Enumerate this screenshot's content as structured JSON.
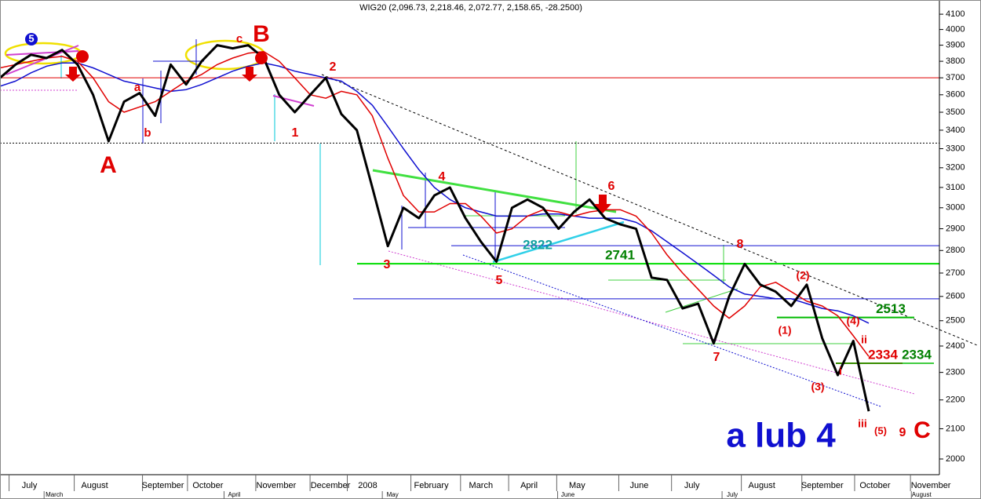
{
  "chart_data": {
    "type": "line",
    "title": "WIG20 (2,096.73, 2,218.46, 2,072.77, 2,158.65, -28.2500)",
    "log_scale": true,
    "xlim": [
      0,
      60.5
    ],
    "ylim": [
      1950,
      4195
    ],
    "yticks": [
      2000,
      2100,
      2200,
      2300,
      2400,
      2500,
      2600,
      2700,
      2800,
      2900,
      3000,
      3100,
      3200,
      3300,
      3400,
      3500,
      3600,
      3700,
      3800,
      3900,
      4000,
      4100
    ],
    "xticks": [
      {
        "value": 1.9,
        "label": "July"
      },
      {
        "value": 6.1,
        "label": "August"
      },
      {
        "value": 10.5,
        "label": "September"
      },
      {
        "value": 13.4,
        "label": "October"
      },
      {
        "value": 17.8,
        "label": "November"
      },
      {
        "value": 21.3,
        "label": "December"
      },
      {
        "value": 23.7,
        "label": "2008"
      },
      {
        "value": 27.8,
        "label": "February"
      },
      {
        "value": 31.0,
        "label": "March"
      },
      {
        "value": 34.1,
        "label": "April"
      },
      {
        "value": 37.2,
        "label": "May"
      },
      {
        "value": 41.2,
        "label": "June"
      },
      {
        "value": 44.6,
        "label": "July"
      },
      {
        "value": 49.1,
        "label": "August"
      },
      {
        "value": 53.0,
        "label": "September"
      },
      {
        "value": 56.4,
        "label": "October"
      },
      {
        "value": 60.0,
        "label": "November"
      }
    ],
    "xticks2": [
      {
        "value": 3.5,
        "label": "March"
      },
      {
        "value": 15.1,
        "label": "April"
      },
      {
        "value": 25.3,
        "label": "May"
      },
      {
        "value": 36.6,
        "label": "June"
      },
      {
        "value": 47.2,
        "label": "July"
      },
      {
        "value": 59.4,
        "label": "August"
      }
    ],
    "series": [
      {
        "name": "WIG20",
        "color": "#000000",
        "values": [
          3700,
          3780,
          3840,
          3820,
          3870,
          3780,
          3600,
          3340,
          3560,
          3610,
          3480,
          3780,
          3660,
          3800,
          3900,
          3880,
          3900,
          3820,
          3600,
          3500,
          3600,
          3700,
          3490,
          3400,
          3100,
          2820,
          3000,
          2950,
          3060,
          3100,
          2950,
          2840,
          2750,
          3000,
          3040,
          3000,
          2900,
          2980,
          3040,
          2950,
          2920,
          2900,
          2680,
          2670,
          2550,
          2570,
          2410,
          2600,
          2740,
          2650,
          2620,
          2560,
          2650,
          2430,
          2290,
          2420,
          2160
        ]
      },
      {
        "name": "MA1",
        "color": "#e00000",
        "values": [
          3760,
          3780,
          3800,
          3820,
          3830,
          3800,
          3700,
          3560,
          3500,
          3530,
          3560,
          3620,
          3680,
          3720,
          3780,
          3820,
          3850,
          3860,
          3800,
          3700,
          3600,
          3580,
          3620,
          3600,
          3480,
          3250,
          3060,
          2980,
          2980,
          3020,
          3020,
          2960,
          2880,
          2900,
          2960,
          2990,
          2980,
          2960,
          2980,
          2990,
          2990,
          2960,
          2880,
          2780,
          2700,
          2630,
          2560,
          2510,
          2560,
          2640,
          2660,
          2620,
          2580,
          2560,
          2520,
          2440,
          2360
        ]
      },
      {
        "name": "MA2",
        "color": "#1010d0",
        "values": [
          3650,
          3680,
          3730,
          3770,
          3790,
          3790,
          3760,
          3720,
          3680,
          3660,
          3640,
          3620,
          3630,
          3660,
          3700,
          3740,
          3770,
          3790,
          3770,
          3740,
          3720,
          3700,
          3680,
          3620,
          3540,
          3420,
          3300,
          3190,
          3100,
          3040,
          3000,
          2980,
          2960,
          2960,
          2960,
          2970,
          2970,
          2960,
          2950,
          2950,
          2950,
          2930,
          2890,
          2840,
          2790,
          2740,
          2690,
          2640,
          2610,
          2600,
          2590,
          2590,
          2570,
          2550,
          2540,
          2520,
          2490
        ]
      }
    ],
    "levels": [
      {
        "value": 3700,
        "color": "#e00000"
      },
      {
        "value": 3330,
        "color": "#000000"
      },
      {
        "value": 2822,
        "color": "#1010d0"
      },
      {
        "value": 2741,
        "color": "#00dd00"
      },
      {
        "value": 2590,
        "color": "#1010d0"
      },
      {
        "value": 2513,
        "color": "#00bb00"
      },
      {
        "value": 2334,
        "color": "#e00000"
      },
      {
        "value": 2334,
        "color": "#00bb00"
      }
    ],
    "annotations": [
      "A",
      "B",
      "C",
      "a lub 4",
      "a",
      "b",
      "c",
      "1",
      "2",
      "3",
      "4",
      "5",
      "6",
      "7",
      "8",
      "9",
      "(1)",
      "(2)",
      "(3)",
      "(4)",
      "(5)",
      "i",
      "ii",
      "iii",
      "5"
    ]
  }
}
